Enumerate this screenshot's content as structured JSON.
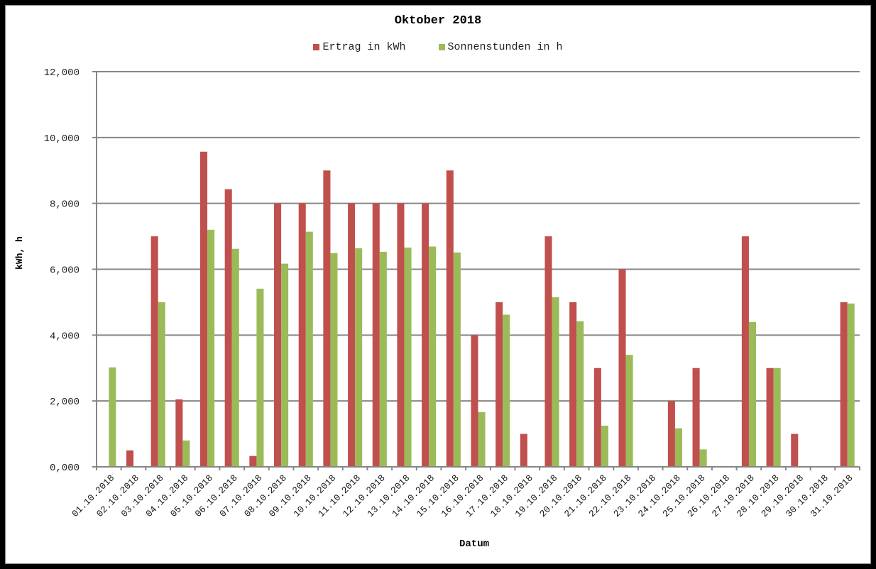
{
  "chart_data": {
    "type": "bar",
    "title": "Oktober 2018",
    "xlabel": "Datum",
    "ylabel": "kWh, h",
    "ylim": [
      0,
      12000
    ],
    "yticks": [
      "0,000",
      "2,000",
      "4,000",
      "6,000",
      "8,000",
      "10,000",
      "12,000"
    ],
    "grid": true,
    "legend_position": "top",
    "categories": [
      "01.10.2018",
      "02.10.2018",
      "03.10.2018",
      "04.10.2018",
      "05.10.2018",
      "06.10.2018",
      "07.10.2018",
      "08.10.2018",
      "09.10.2018",
      "10.10.2018",
      "11.10.2018",
      "12.10.2018",
      "13.10.2018",
      "14.10.2018",
      "15.10.2018",
      "16.10.2018",
      "17.10.2018",
      "18.10.2018",
      "19.10.2018",
      "20.10.2018",
      "21.10.2018",
      "22.10.2018",
      "23.10.2018",
      "24.10.2018",
      "25.10.2018",
      "26.10.2018",
      "27.10.2018",
      "28.10.2018",
      "29.10.2018",
      "30.10.2018",
      "31.10.2018"
    ],
    "series": [
      {
        "name": "Ertrag in kWh",
        "color": "#c0504d",
        "values": [
          0,
          0.5,
          7.0,
          2.05,
          9.57,
          8.43,
          0.33,
          8.0,
          8.0,
          9.0,
          8.0,
          8.0,
          8.0,
          8.0,
          9.0,
          4.0,
          5.0,
          1.0,
          7.0,
          5.0,
          3.0,
          6.0,
          0,
          2.0,
          3.0,
          0,
          7.0,
          3.0,
          1.0,
          0,
          5.0
        ]
      },
      {
        "name": "Sonnenstunden in h",
        "color": "#9bbb59",
        "values": [
          3.02,
          0,
          5.0,
          0.8,
          7.2,
          6.62,
          5.41,
          6.17,
          7.14,
          6.49,
          6.64,
          6.53,
          6.66,
          6.69,
          6.51,
          1.66,
          4.62,
          0,
          5.15,
          4.42,
          1.25,
          3.4,
          0,
          1.17,
          0.53,
          0,
          4.4,
          3.0,
          0,
          0,
          4.96
        ]
      }
    ],
    "value_scale": 1000
  },
  "colors": {
    "grid": "#868686",
    "axis": "#868686"
  }
}
